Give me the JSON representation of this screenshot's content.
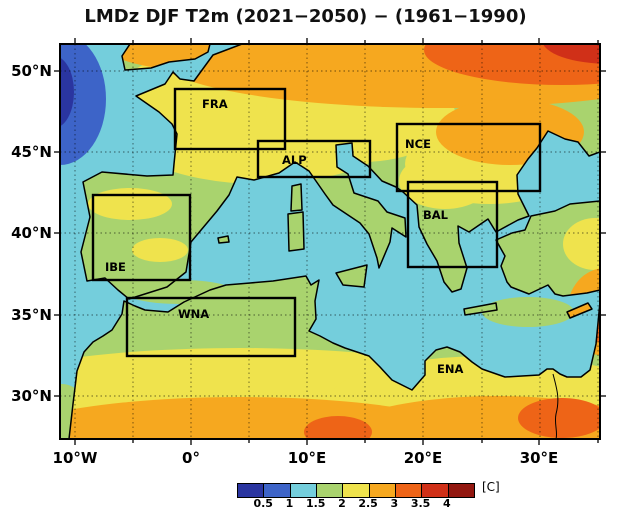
{
  "title": "LMDz DJF T2m (2021−2050) − (1961−1990)",
  "map": {
    "y_ticks": [
      "50°N",
      "45°N",
      "40°N",
      "35°N",
      "30°N"
    ],
    "x_ticks": [
      "10°W",
      "0°",
      "10°E",
      "20°E",
      "30°E"
    ],
    "regions": [
      {
        "label": "FRA"
      },
      {
        "label": "ALP"
      },
      {
        "label": "NCE"
      },
      {
        "label": "BAL"
      },
      {
        "label": "IBE"
      },
      {
        "label": "WNA"
      },
      {
        "label": "ENA"
      }
    ]
  },
  "colorbar": {
    "tick_labels": [
      "0.5",
      "1",
      "1.5",
      "2",
      "2.5",
      "3",
      "3.5",
      "4"
    ],
    "unit": "[C]",
    "colors": [
      "#2A35A0",
      "#3D64C8",
      "#74CEDC",
      "#A9D36E",
      "#EFE34D",
      "#F6A81F",
      "#EE6417",
      "#D03018",
      "#921710"
    ]
  },
  "palette": {
    "sea_cyan": "#74CEDC",
    "land_green": "#A9D36E",
    "warm_yellow": "#EFE34D",
    "warm_orange": "#F6A81F",
    "hot_red": "#EE6417",
    "hottest_dark_red": "#D03018",
    "cool_blue": "#3D64C8",
    "coolest_dark_blue": "#2A35A0"
  },
  "chart_data": {
    "type": "heatmap",
    "title": "LMDz DJF T2m (2021−2050) − (1961−1990)",
    "x_tick_labels": [
      "10°W",
      "0°",
      "10°E",
      "20°E",
      "30°E"
    ],
    "y_tick_labels": [
      "50°N",
      "45°N",
      "40°N",
      "35°N",
      "30°N"
    ],
    "x_range_deg_lon": [
      -11,
      36
    ],
    "y_range_deg_lat": [
      27.5,
      51.5
    ],
    "colorbar_levels_C": [
      0.5,
      1,
      1.5,
      2,
      2.5,
      3,
      3.5,
      4
    ],
    "colorbar_unit": "[C]",
    "grid": "dotted, 5-degree spacing",
    "regions": [
      {
        "name": "FRA",
        "lon_deg": [
          -1.5,
          8
        ],
        "lat_deg": [
          45,
          49
        ]
      },
      {
        "name": "ALP",
        "lon_deg": [
          5.5,
          15.5
        ],
        "lat_deg": [
          43.5,
          45.5
        ]
      },
      {
        "name": "NCE",
        "lon_deg": [
          17.5,
          30
        ],
        "lat_deg": [
          42.5,
          46.5
        ]
      },
      {
        "name": "BAL",
        "lon_deg": [
          18.5,
          26.5
        ],
        "lat_deg": [
          38,
          43
        ]
      },
      {
        "name": "IBE",
        "lon_deg": [
          -8.5,
          0
        ],
        "lat_deg": [
          37,
          42.5
        ]
      },
      {
        "name": "WNA",
        "lon_deg": [
          -5.5,
          9
        ],
        "lat_deg": [
          32.5,
          36
        ]
      },
      {
        "name": "ENA",
        "lon_deg": null,
        "lat_deg": null
      }
    ],
    "field_summary": [
      {
        "area": "Mediterranean and Atlantic sea surface",
        "anomaly_C": "1–1.5 (cyan)"
      },
      {
        "area": "Eastern Atlantic patch at west edge ~45–50N",
        "anomaly_C": "<0.5–1 (blue/dark blue)"
      },
      {
        "area": "Iberia, Italy, Balkans, coastal North Africa, Anatolia",
        "anomaly_C": "1.5–2 (green)"
      },
      {
        "area": "France, central Europe, interior Iberia",
        "anomaly_C": "2–2.5 (yellow)"
      },
      {
        "area": "Northern/northeastern Europe band 48–51N",
        "anomaly_C": "2.5–3.5 (orange/red)"
      },
      {
        "area": "Far northeast corner",
        "anomaly_C": ">3.5–4 (dark red)"
      },
      {
        "area": "Sahara interior along southern edge",
        "anomaly_C": "2.5–3.5 (orange, red spots)"
      }
    ]
  }
}
